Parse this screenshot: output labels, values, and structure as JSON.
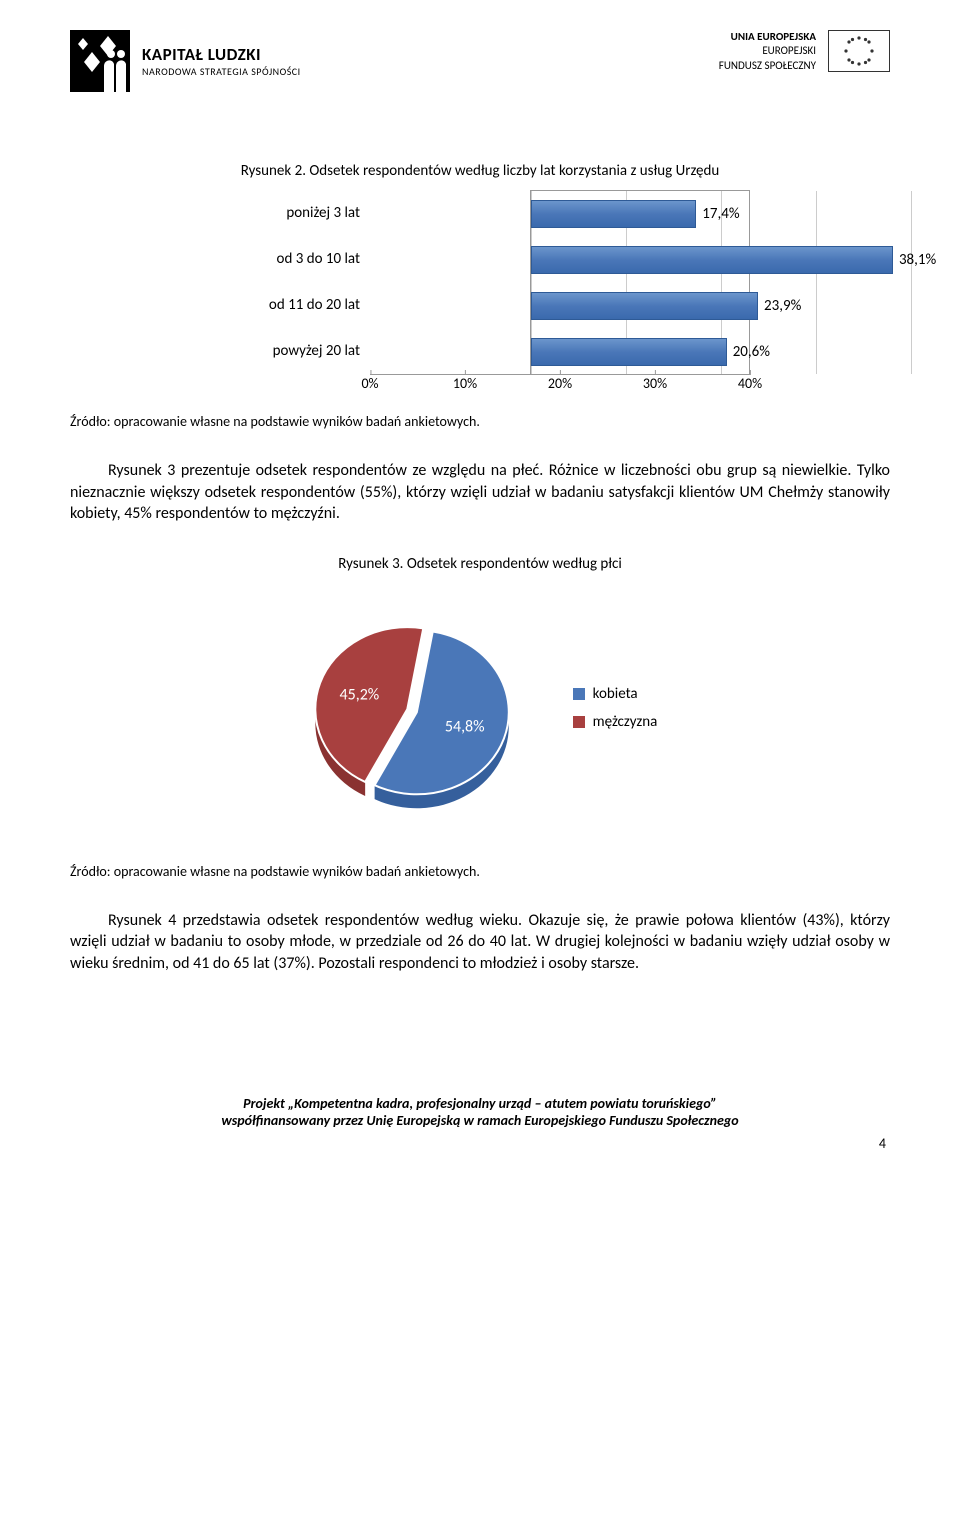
{
  "header": {
    "logo_left": {
      "line1": "KAPITAŁ LUDZKI",
      "line2": "NARODOWA STRATEGIA SPÓJNOŚCI"
    },
    "logo_right": {
      "line1": "UNIA EUROPEJSKA",
      "line2": "EUROPEJSKI",
      "line3": "FUNDUSZ SPOŁECZNY"
    }
  },
  "fig2": {
    "title": "Rysunek 2. Odsetek respondentów według liczby lat korzystania z usług Urzędu",
    "categories": [
      "poniżej 3 lat",
      "od 3 do 10 lat",
      "od 11 do 20 lat",
      "powyżej 20 lat"
    ],
    "values_pct": [
      17.4,
      38.1,
      23.9,
      20.6
    ],
    "value_labels": [
      "17,4%",
      "38,1%",
      "23,9%",
      "20,6%"
    ],
    "xlim_pct": 40,
    "xticks_pct": [
      0,
      10,
      20,
      30,
      40
    ],
    "xtick_labels": [
      "0%",
      "10%",
      "20%",
      "30%",
      "40%"
    ],
    "bar_border_color": "#2e5a96",
    "bar_fill_top": "#6b95cc",
    "bar_fill_mid": "#4a77b8",
    "bar_fill_bot": "#3a6aad",
    "grid_color": "#cccccc",
    "label_fontsize": 15
  },
  "src_note": "Źródło: opracowanie własne na podstawie wyników badań ankietowych.",
  "para1": "Rysunek 3 prezentuje odsetek respondentów ze względu na płeć. Różnice w liczebności obu grup są niewielkie. Tylko nieznacznie większy odsetek respondentów (55%), którzy wzięli udział w badaniu satysfakcji klientów UM Chełmży stanowiły kobiety, 45% respondentów to mężczyźni.",
  "fig3": {
    "title": "Rysunek 3. Odsetek respondentów według płci",
    "slices": [
      {
        "label": "kobieta",
        "value_pct": 54.8,
        "value_label": "54,8%",
        "color": "#4a77b8",
        "color_dark": "#355f9c",
        "legend_color": "#4a77b8"
      },
      {
        "label": "mężczyzna",
        "value_pct": 45.2,
        "value_label": "45,2%",
        "color": "#a8403f",
        "color_dark": "#8a3231",
        "legend_color": "#a8403f"
      }
    ],
    "text_color": "#ffffff",
    "background_color": "#ffffff"
  },
  "para2": "Rysunek 4 przedstawia odsetek respondentów według wieku. Okazuje się, że prawie połowa klientów (43%), którzy wzięli udział w badaniu to osoby młode, w przedziale od 26 do 40 lat. W drugiej kolejności w badaniu wzięły udział osoby w wieku średnim, od 41 do 65 lat (37%). Pozostali respondenci to młodzież i osoby starsze.",
  "footer": {
    "line1": "Projekt „Kompetentna kadra, profesjonalny urząd – atutem powiatu toruńskiego”",
    "line2": "współfinansowany przez Unię Europejską w ramach Europejskiego Funduszu Społecznego",
    "page_num": "4"
  }
}
